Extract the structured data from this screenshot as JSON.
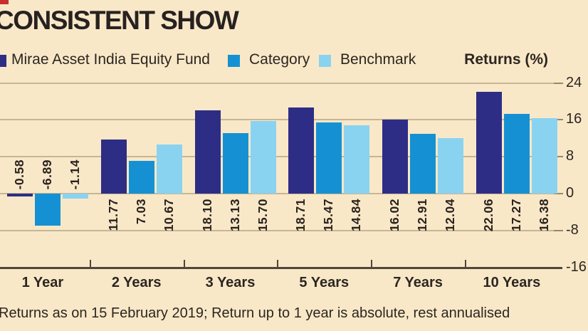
{
  "title": "CONSISTENT SHOW",
  "returns_label": "Returns (%)",
  "footnote": "Returns as on 15 February 2019; Return up to 1 year is absolute, rest annualised",
  "legend": [
    {
      "label": "Mirae Asset India Equity Fund",
      "color": "#2e2d85"
    },
    {
      "label": "Category",
      "color": "#1591d3"
    },
    {
      "label": "Benchmark",
      "color": "#89d3f1"
    }
  ],
  "colors": {
    "background": "#f9e8c8",
    "accent_red": "#c8302d",
    "gridline": "#c7b695",
    "axis": "#4f463c",
    "text": "#2c2620"
  },
  "chart_data": {
    "type": "bar",
    "title": "CONSISTENT SHOW",
    "ylabel": "Returns (%)",
    "categories": [
      "1 Year",
      "2 Years",
      "3 Years",
      "5 Years",
      "7 Years",
      "10 Years"
    ],
    "series": [
      {
        "name": "Mirae Asset India Equity Fund",
        "color": "#2e2d85",
        "values": [
          -0.58,
          11.77,
          18.1,
          18.71,
          16.02,
          22.06
        ]
      },
      {
        "name": "Category",
        "color": "#1591d3",
        "values": [
          -6.89,
          7.03,
          13.13,
          15.47,
          12.91,
          17.27
        ]
      },
      {
        "name": "Benchmark",
        "color": "#89d3f1",
        "values": [
          -1.14,
          10.67,
          15.7,
          14.84,
          12.04,
          16.38
        ]
      }
    ],
    "yticks": [
      24,
      16,
      8,
      0,
      -8,
      -16
    ],
    "ylim": [
      -16,
      24
    ],
    "grid": true,
    "legend_position": "top",
    "value_labels": true,
    "footnote": "Returns as on 15 February 2019; Return up to 1 year is absolute, rest annualised"
  }
}
